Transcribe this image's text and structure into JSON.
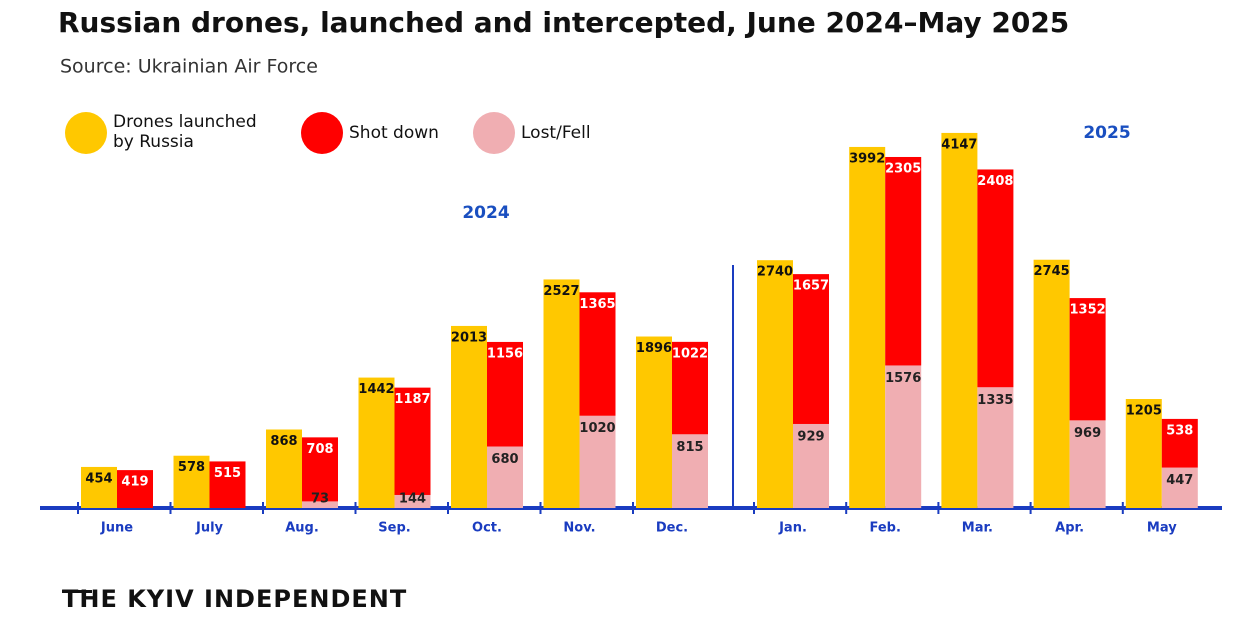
{
  "chart_data": {
    "type": "bar",
    "title": "Russian drones, launched and intercepted, June 2024–May 2025",
    "subtitle": "Source: Ukrainian Air Force",
    "categories": [
      "June",
      "July",
      "Aug.",
      "Sep.",
      "Oct.",
      "Nov.",
      "Dec.",
      "Jan.",
      "Feb.",
      "Mar.",
      "Apr.",
      "May"
    ],
    "annotations": [
      "2024",
      "2025"
    ],
    "legend_labels": [
      "Drones launched",
      "by Russia"
    ],
    "series": [
      {
        "name": "Drones launched by Russia",
        "color": "#ffc800",
        "values": [
          454,
          578,
          868,
          1442,
          2013,
          2527,
          1896,
          2740,
          3992,
          4147,
          2745,
          1205
        ]
      },
      {
        "name": "Shot down",
        "color": "#ff0000",
        "values": [
          419,
          515,
          708,
          1187,
          1156,
          1365,
          1022,
          1657,
          2305,
          2408,
          1352,
          538
        ]
      },
      {
        "name": "Lost/Fell",
        "color": "#f0aeb2",
        "values": [
          null,
          null,
          73,
          144,
          680,
          1020,
          815,
          929,
          1576,
          1335,
          969,
          447
        ]
      }
    ],
    "ylim": [
      0,
      4500
    ],
    "source": "THE KYIV INDEPENDENT"
  }
}
